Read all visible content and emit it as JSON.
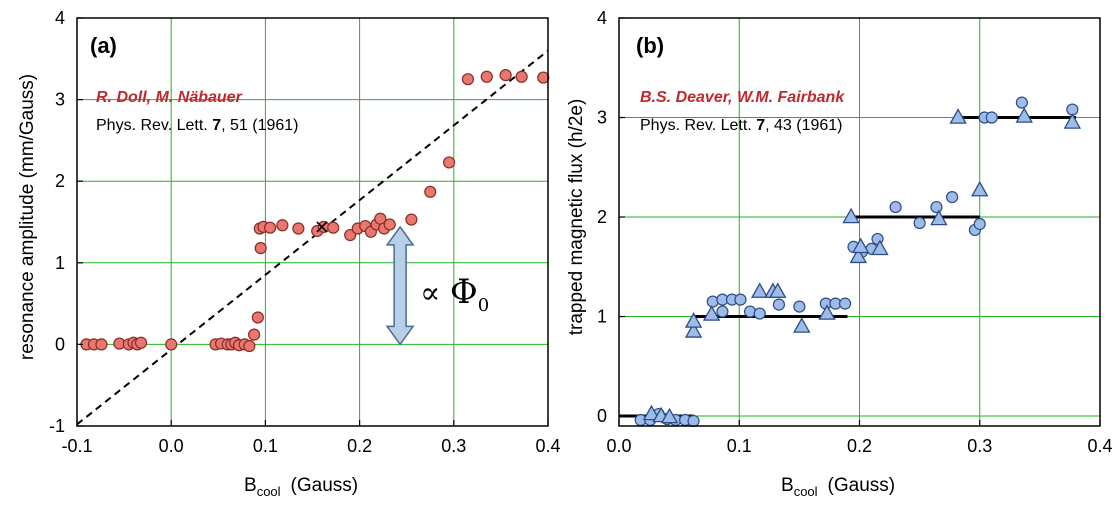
{
  "colors": {
    "grid": "#22b422",
    "axis": "#000000",
    "marker_a_fill": "#e7776f",
    "marker_a_stroke": "#8a2b27",
    "marker_b_fill": "#9fbbe8",
    "marker_b_stroke": "#2a4d86",
    "fit_line": "#000000",
    "arrow_fill": "#b8cfe8",
    "arrow_stroke": "#4a6b92",
    "author_text": "#c0282d"
  },
  "panel_a": {
    "label": "(a)",
    "authors": "R. Doll, M. Näbauer",
    "ref_journal": "Phys. Rev. Lett. ",
    "ref_volume": "7",
    "ref_rest": ", 51 (1961)",
    "annotation_prefix": "∝ ",
    "annotation_symbol": "Φ",
    "annotation_sub": "0",
    "xlabel_main": "B",
    "xlabel_sub": "cool",
    "xlabel_unit": "(Gauss)",
    "ylabel": "resonance amplitude (mm/Gauss)"
  },
  "panel_b": {
    "label": "(b)",
    "authors": "B.S. Deaver, W.M. Fairbank",
    "ref_journal": "Phys. Rev. Lett. ",
    "ref_volume": "7",
    "ref_rest": ", 43 (1961)",
    "xlabel_main": "B",
    "xlabel_sub": "cool",
    "xlabel_unit": "(Gauss)",
    "ylabel": "trapped magnetic flux (h/2e)"
  },
  "chart_data": [
    {
      "type": "scatter",
      "xlim": [
        -0.1,
        0.4
      ],
      "ylim": [
        -1,
        4
      ],
      "xticks": [
        -0.1,
        0.0,
        0.1,
        0.2,
        0.3,
        0.4
      ],
      "xtick_labels": [
        "-0.1",
        "0.0",
        "0.1",
        "0.2",
        "0.3",
        "0.4"
      ],
      "yticks": [
        -1,
        0,
        1,
        2,
        3,
        4
      ],
      "ytick_labels": [
        "-1",
        "0",
        "1",
        "2",
        "3",
        "4"
      ],
      "grid": true,
      "series": [
        {
          "marker": "circle",
          "x": [
            -0.09,
            -0.082,
            -0.074,
            -0.055,
            -0.045,
            -0.04,
            -0.036,
            -0.032,
            0.0,
            0.047,
            0.053,
            0.06,
            0.064,
            0.068,
            0.072,
            0.078,
            0.083,
            0.088,
            0.092,
            0.095,
            0.094,
            0.098,
            0.105,
            0.118,
            0.135,
            0.155,
            0.162,
            0.172,
            0.19,
            0.198,
            0.206,
            0.212,
            0.218,
            0.222,
            0.226,
            0.232,
            0.255,
            0.275,
            0.295,
            0.315,
            0.335,
            0.355,
            0.372,
            0.395
          ],
          "y": [
            0.0,
            0.0,
            0.0,
            0.01,
            0.0,
            0.02,
            0.0,
            0.02,
            0.0,
            0.0,
            0.01,
            0.0,
            0.0,
            0.02,
            -0.01,
            0.0,
            -0.02,
            0.12,
            0.33,
            1.18,
            1.42,
            1.44,
            1.43,
            1.46,
            1.42,
            1.39,
            1.44,
            1.43,
            1.34,
            1.42,
            1.45,
            1.38,
            1.47,
            1.54,
            1.42,
            1.47,
            1.53,
            1.87,
            2.23,
            3.25,
            3.28,
            3.3,
            3.28,
            3.27
          ]
        }
      ],
      "reference_line": {
        "x": [
          -0.1,
          0.4
        ],
        "y": [
          -0.98,
          3.6
        ],
        "style": "dashed"
      },
      "cross_markers": {
        "x": [
          0.16
        ],
        "y": [
          1.44
        ]
      },
      "arrow": {
        "x": 0.243,
        "y_from": 0.0,
        "y_to": 1.44
      }
    },
    {
      "type": "scatter",
      "xlim": [
        0.0,
        0.4
      ],
      "ylim": [
        -0.1,
        4
      ],
      "xticks": [
        0.0,
        0.1,
        0.2,
        0.3,
        0.4
      ],
      "xtick_labels": [
        "0.0",
        "0.1",
        "0.2",
        "0.3",
        "0.4"
      ],
      "yticks": [
        0,
        1,
        2,
        3,
        4
      ],
      "ytick_labels": [
        "0",
        "1",
        "2",
        "3",
        "4"
      ],
      "grid": true,
      "series": [
        {
          "marker": "circle",
          "x": [
            0.018,
            0.026,
            0.033,
            0.04,
            0.047,
            0.055,
            0.062,
            0.078,
            0.086,
            0.086,
            0.094,
            0.101,
            0.109,
            0.117,
            0.133,
            0.15,
            0.172,
            0.18,
            0.188,
            0.195,
            0.202,
            0.21,
            0.215,
            0.23,
            0.25,
            0.264,
            0.277,
            0.296,
            0.3,
            0.304,
            0.31,
            0.335,
            0.377
          ],
          "y": [
            -0.04,
            -0.04,
            0.02,
            -0.03,
            -0.04,
            -0.04,
            -0.05,
            1.15,
            1.05,
            1.17,
            1.17,
            1.17,
            1.05,
            1.03,
            1.12,
            1.1,
            1.13,
            1.13,
            1.13,
            1.7,
            1.65,
            1.68,
            1.78,
            2.1,
            1.94,
            2.1,
            2.2,
            1.87,
            1.93,
            3.0,
            3.0,
            3.15,
            3.08
          ]
        },
        {
          "marker": "triangle",
          "x": [
            0.027,
            0.035,
            0.042,
            0.062,
            0.062,
            0.077,
            0.117,
            0.128,
            0.132,
            0.152,
            0.173,
            0.193,
            0.199,
            0.201,
            0.217,
            0.266,
            0.3,
            0.282,
            0.337,
            0.377
          ],
          "y": [
            0.02,
            0.0,
            -0.01,
            0.85,
            0.95,
            1.02,
            1.25,
            1.25,
            1.25,
            0.9,
            1.03,
            2.0,
            1.6,
            1.7,
            1.68,
            1.98,
            2.27,
            3.0,
            3.01,
            2.95
          ]
        }
      ],
      "steps": [
        {
          "x": [
            0.0,
            0.062
          ],
          "y": 0
        },
        {
          "x": [
            0.062,
            0.19
          ],
          "y": 1
        },
        {
          "x": [
            0.19,
            0.3
          ],
          "y": 2
        },
        {
          "x": [
            0.28,
            0.38
          ],
          "y": 3
        }
      ]
    }
  ]
}
